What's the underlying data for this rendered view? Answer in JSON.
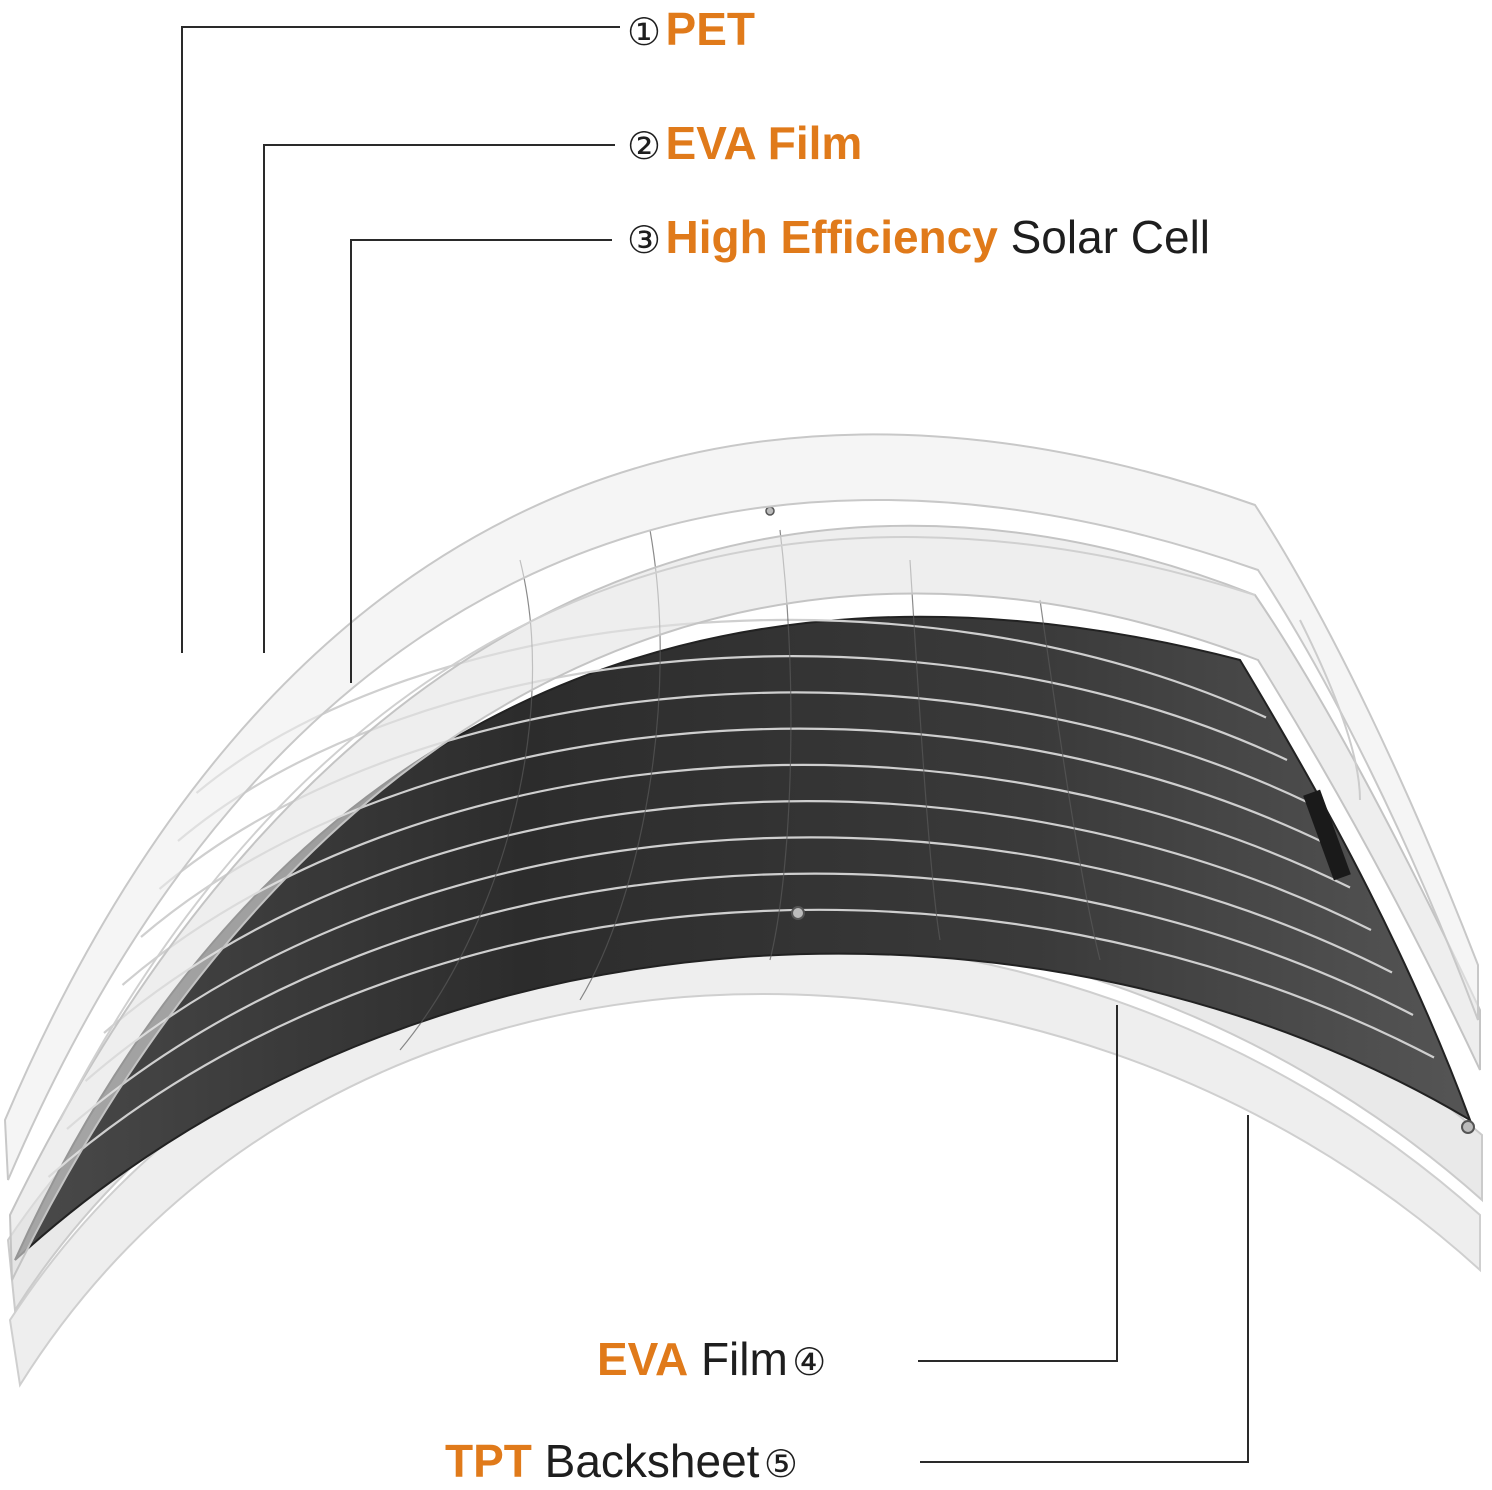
{
  "layers": [
    {
      "marker": "①",
      "highlight": "PET",
      "rest": ""
    },
    {
      "marker": "②",
      "highlight": "EVA Film",
      "rest": ""
    },
    {
      "marker": "③",
      "highlight": "High Efficiency",
      "rest": " Solar Cell"
    },
    {
      "marker": "④",
      "highlight": "EVA",
      "rest": " Film"
    },
    {
      "marker": "⑤",
      "highlight": "TPT",
      "rest": " Backsheet"
    }
  ],
  "colors": {
    "accent": "#e07a1a",
    "text": "#1e1e1e",
    "cell": "#3c3c3c",
    "film_fill": "#e6e6e6",
    "film_edge": "#c9c9c9"
  }
}
